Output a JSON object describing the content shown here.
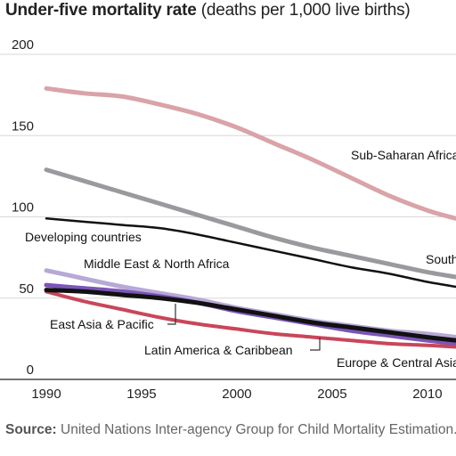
{
  "title_bold": "Under-five mortality rate",
  "title_rest": " (deaths per 1,000 live births)",
  "source_label": "Source:",
  "source_text": " United Nations Inter-agency Group for Child Mortality Estimation.",
  "colors": {
    "sub_saharan": "#d9a3a8",
    "south_asia": "#9a9a9e",
    "developing": "#111111",
    "mena": "#b7a9d6",
    "east_asia": "#7b55b8",
    "latam": "#c9465a",
    "europe": "#111111",
    "grid": "#d7d7d7"
  },
  "chart_data": {
    "type": "line",
    "title": "Under-five mortality rate (deaths per 1,000 live births)",
    "xlabel": "",
    "ylabel": "",
    "xlim": [
      1990,
      2011.5
    ],
    "ylim": [
      0,
      200
    ],
    "x_ticks": [
      "1990",
      "1995",
      "2000",
      "2005",
      "2010"
    ],
    "y_ticks": [
      "0",
      "50",
      "100",
      "150",
      "200"
    ],
    "grid": "horizontal",
    "x": [
      1990,
      1992,
      1994,
      1996,
      1998,
      2000,
      2002,
      2004,
      2006,
      2008,
      2010,
      2011.5
    ],
    "series": [
      {
        "name": "Sub-Saharan Africa",
        "color_key": "sub_saharan",
        "width": 5,
        "values": [
          179,
          176,
          174,
          169,
          163,
          155,
          145,
          135,
          124,
          113,
          104,
          99
        ]
      },
      {
        "name": "South Asia",
        "color_key": "south_asia",
        "width": 5,
        "values": [
          129,
          122,
          115,
          108,
          101,
          94,
          87,
          81,
          76,
          71,
          66,
          63
        ]
      },
      {
        "name": "Developing countries",
        "color_key": "developing",
        "width": 2.5,
        "values": [
          99,
          97,
          95,
          93,
          89,
          84,
          79,
          74,
          69,
          65,
          60,
          57
        ]
      },
      {
        "name": "Middle East & North Africa",
        "color_key": "mena",
        "width": 5,
        "values": [
          67,
          62,
          57,
          53,
          49,
          44,
          40,
          36,
          33,
          30,
          28,
          26
        ]
      },
      {
        "name": "East Asia & Pacific",
        "color_key": "east_asia",
        "width": 5,
        "values": [
          58,
          56,
          54,
          51,
          47,
          42,
          38,
          34,
          30,
          27,
          24,
          22
        ]
      },
      {
        "name": "Latin America & Caribbean",
        "color_key": "latam",
        "width": 4,
        "values": [
          54,
          48,
          43,
          38,
          34,
          31,
          28,
          26,
          24,
          22,
          21,
          20
        ]
      },
      {
        "name": "Europe & Central Asia",
        "color_key": "europe",
        "width": 5,
        "values": [
          55,
          54,
          52,
          50,
          47,
          43,
          39,
          35,
          32,
          29,
          26,
          24
        ]
      }
    ],
    "labels": {
      "sub_saharan": "Sub-Saharan Africa",
      "south_asia": "South Asia",
      "developing": "Developing countries",
      "mena": "Middle East & North Africa",
      "east_asia": "East Asia & Pacific",
      "latam": "Latin America & Caribbean",
      "europe": "Europe & Central Asia"
    }
  }
}
